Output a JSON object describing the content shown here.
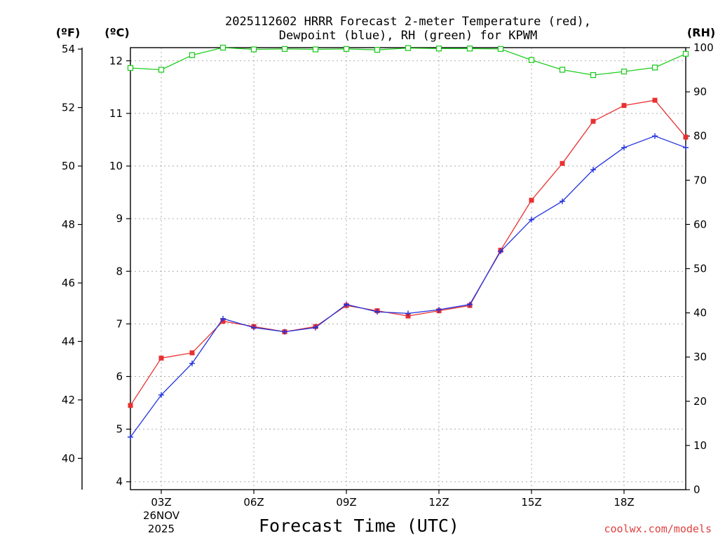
{
  "chart_data": {
    "type": "line",
    "title_line1": "2025112602 HRRR Forecast 2-meter Temperature (red),",
    "title_line2": "Dewpoint (blue), RH (green) for KPWM",
    "unit_f": "(ºF)",
    "unit_c": "(ºC)",
    "unit_rh": "(RH)",
    "xlabel": "Forecast Time (UTC)",
    "credit": "coolwx.com/models",
    "x_hours": [
      2,
      3,
      4,
      5,
      6,
      7,
      8,
      9,
      10,
      11,
      12,
      13,
      14,
      15,
      16,
      17,
      18,
      19,
      20
    ],
    "x_range": [
      2,
      20
    ],
    "x_ticks": [
      {
        "hour": 3,
        "label": "03Z",
        "sub1": "26NOV",
        "sub2": "2025"
      },
      {
        "hour": 6,
        "label": "06Z"
      },
      {
        "hour": 9,
        "label": "09Z"
      },
      {
        "hour": 12,
        "label": "12Z"
      },
      {
        "hour": 15,
        "label": "15Z"
      },
      {
        "hour": 18,
        "label": "18Z"
      }
    ],
    "c_range": [
      3.85,
      12.25
    ],
    "c_ticks": [
      4,
      5,
      6,
      7,
      8,
      9,
      10,
      11,
      12
    ],
    "f_ticks": [
      40,
      42,
      44,
      46,
      48,
      50,
      52,
      54
    ],
    "rh_range": [
      0,
      100
    ],
    "rh_ticks": [
      0,
      10,
      20,
      30,
      40,
      50,
      60,
      70,
      80,
      90,
      100
    ],
    "series": [
      {
        "name": "Temperature",
        "color": "#e83030",
        "marker": "square-filled",
        "values_c": [
          5.45,
          6.35,
          6.45,
          7.05,
          6.95,
          6.85,
          6.95,
          7.35,
          7.25,
          7.15,
          7.25,
          7.35,
          8.4,
          9.35,
          10.05,
          10.85,
          11.15,
          11.25,
          10.55
        ]
      },
      {
        "name": "Dewpoint",
        "color": "#2030e0",
        "marker": "plus",
        "values_c": [
          4.85,
          5.65,
          6.25,
          7.1,
          6.93,
          6.85,
          6.93,
          7.37,
          7.23,
          7.2,
          7.27,
          7.37,
          8.38,
          8.98,
          9.33,
          9.93,
          10.35,
          10.57,
          10.35
        ]
      },
      {
        "name": "RH",
        "color": "#20cc20",
        "marker": "square-open",
        "values": [
          95.4,
          95,
          98.3,
          100,
          99.6,
          99.7,
          99.6,
          99.7,
          99.5,
          99.9,
          99.8,
          99.8,
          99.7,
          97.2,
          95,
          93.8,
          94.6,
          95.5,
          98.6
        ]
      }
    ]
  }
}
